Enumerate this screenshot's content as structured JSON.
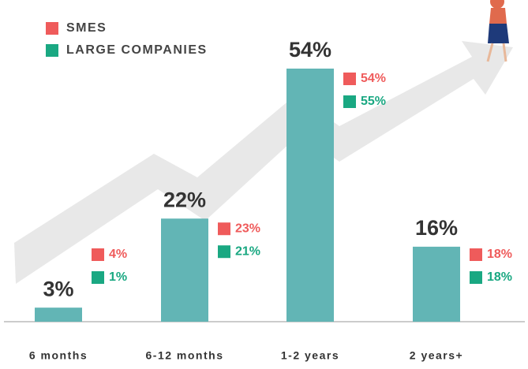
{
  "chart_data": {
    "type": "bar",
    "categories": [
      "6 months",
      "6-12 months",
      "1-2 years",
      "2 years+"
    ],
    "values": [
      3,
      22,
      54,
      16
    ],
    "value_labels": [
      "3%",
      "22%",
      "54%",
      "16%"
    ],
    "color": "#62b5b5",
    "series": [
      {
        "name": "SMES",
        "color": "#ef5b5b",
        "values": [
          4,
          23,
          54,
          18
        ],
        "value_labels": [
          "4%",
          "23%",
          "54%",
          "18%"
        ]
      },
      {
        "name": "LARGE COMPANIES",
        "color": "#1aa882",
        "values": [
          1,
          21,
          55,
          18
        ],
        "value_labels": [
          "1%",
          "21%",
          "55%",
          "18%"
        ]
      }
    ]
  }
}
